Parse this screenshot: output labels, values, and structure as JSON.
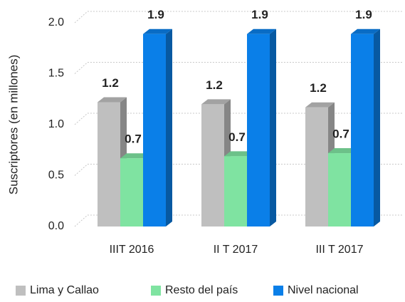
{
  "chart_data": {
    "type": "bar3d",
    "y_label": "Suscriptores (en millones)",
    "categories": [
      "IIIT 2016",
      "II T 2017",
      "III T 2017"
    ],
    "series": [
      {
        "name": "Lima y Callao",
        "color": "#bfbfbf",
        "values": [
          1.22,
          1.2,
          1.17
        ],
        "value_labels": [
          "1.2",
          "1.2",
          "1.2"
        ]
      },
      {
        "name": "Resto del país",
        "color": "#7fe3a1",
        "values": [
          0.67,
          0.69,
          0.72
        ],
        "value_labels": [
          "0.7",
          "0.7",
          "0.7"
        ]
      },
      {
        "name": "Nivel nacional",
        "color": "#0a7fe8",
        "values": [
          1.89,
          1.89,
          1.89
        ],
        "value_labels": [
          "1.9",
          "1.9",
          "1.9"
        ]
      }
    ],
    "ylim": [
      0,
      2
    ],
    "yticks": [
      {
        "value": 0,
        "label": "0.0"
      },
      0.5,
      {
        "value": 1,
        "label": "1.0"
      },
      1.5,
      {
        "value": 2,
        "label": "2.0"
      }
    ],
    "grid": true,
    "legend": "bottom"
  }
}
